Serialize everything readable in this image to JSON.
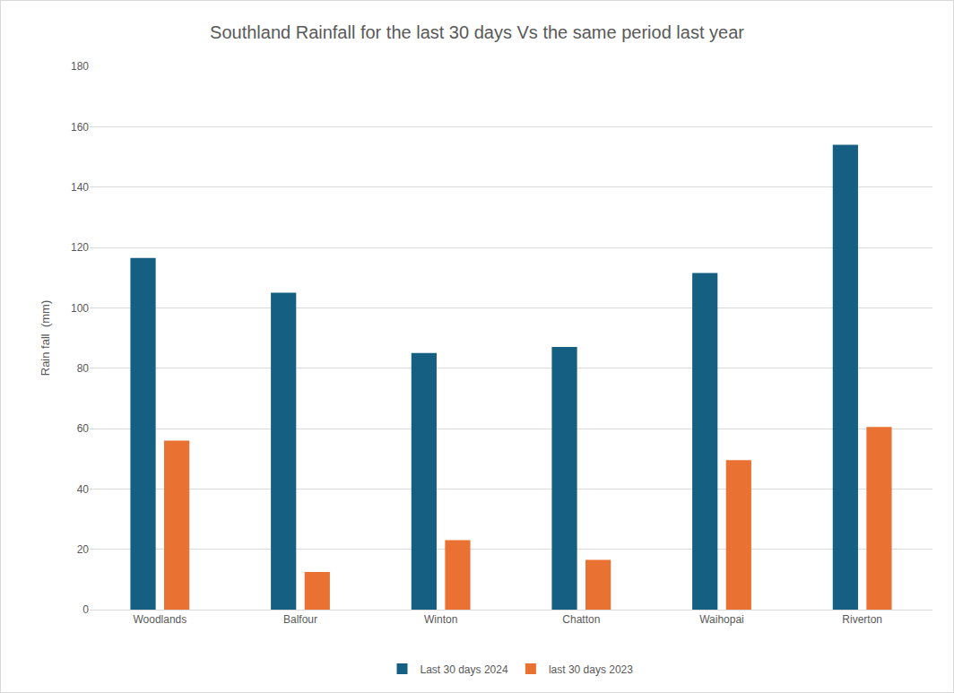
{
  "chart_data": {
    "type": "bar",
    "title": "Southland Rainfall for the last 30 days Vs the same period last year",
    "y_label": "Rain fall  (mm)",
    "categories": [
      "Woodlands",
      "Balfour",
      "Winton",
      "Chatton",
      "Waihopai",
      "Riverton"
    ],
    "series": [
      {
        "name": "Last 30 days 2024",
        "color": "#156082",
        "values": [
          116.5,
          105,
          85,
          87,
          111.5,
          154
        ]
      },
      {
        "name": "last 30 days 2023",
        "color": "#e97132",
        "values": [
          56,
          12.5,
          23,
          16.5,
          49.5,
          60.5
        ]
      }
    ],
    "ylim": [
      0,
      180
    ],
    "yticks": [
      0,
      20,
      40,
      60,
      80,
      100,
      120,
      140,
      160,
      180
    ],
    "grid": true,
    "legend": "bottom"
  }
}
